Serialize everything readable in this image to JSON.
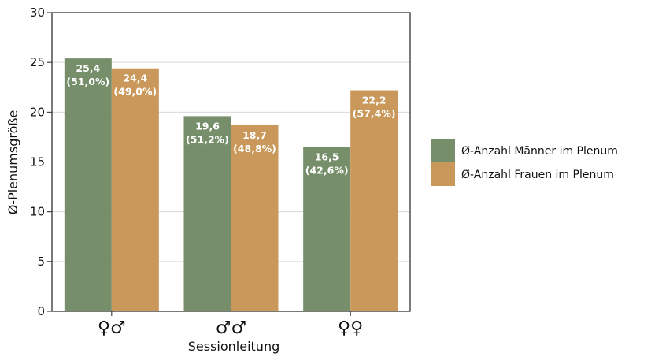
{
  "chart_data": {
    "type": "bar",
    "categories": [
      "♀♂",
      "♂♂",
      "♀♀"
    ],
    "series": [
      {
        "name": "Ø-Anzahl Männer im Plenum",
        "values": [
          25.4,
          19.6,
          16.5
        ],
        "labels": [
          "25,4",
          "19,6",
          "16,5"
        ],
        "percent_labels": [
          "(51,0%)",
          "(51,2%)",
          "(42,6%)"
        ],
        "color": "#768f6a"
      },
      {
        "name": "Ø-Anzahl Frauen im Plenum",
        "values": [
          24.4,
          18.7,
          22.2
        ],
        "labels": [
          "24,4",
          "18,7",
          "22,2"
        ],
        "percent_labels": [
          "(49,0%)",
          "(48,8%)",
          "(57,4%)"
        ],
        "color": "#c9985a"
      }
    ],
    "xlabel": "Sessionleitung",
    "ylabel": "Ø-Plenumsgröße",
    "ylim": [
      0,
      30
    ],
    "yticks": [
      0,
      5,
      10,
      15,
      20,
      25,
      30
    ],
    "grid": true,
    "legend_position": "right"
  }
}
